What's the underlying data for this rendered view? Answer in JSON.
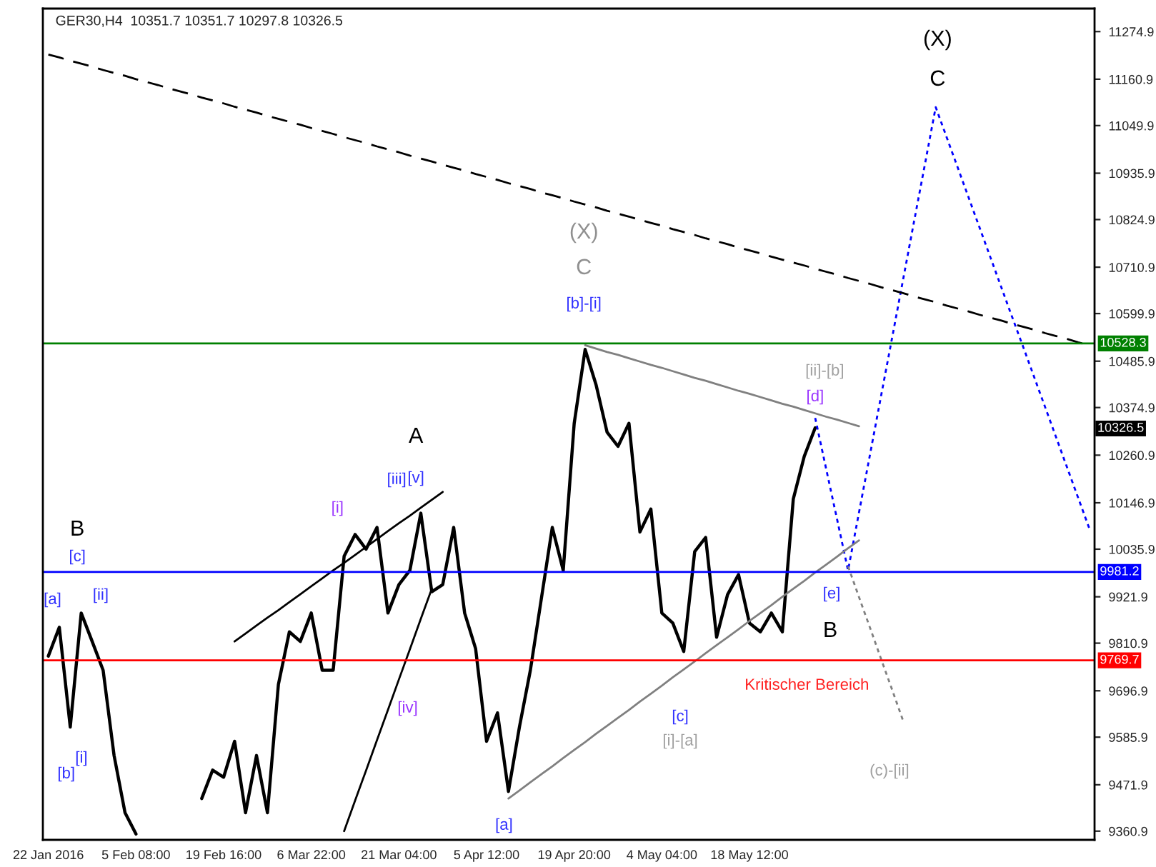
{
  "chart_data": {
    "type": "line",
    "title": "GER30,H4  10351.7 10351.7 10297.8 10326.5",
    "categories": [
      "22 Jan 2016",
      null,
      null,
      null,
      null,
      null,
      null,
      null,
      "5 Feb 08:00",
      null,
      null,
      null,
      null,
      null,
      null,
      null,
      "19 Feb 16:00",
      null,
      null,
      null,
      null,
      null,
      null,
      null,
      "6 Mar 22:00",
      null,
      null,
      null,
      null,
      null,
      null,
      null,
      "21 Mar 04:00",
      null,
      null,
      null,
      null,
      null,
      null,
      null,
      "5 Apr 12:00",
      null,
      null,
      null,
      null,
      null,
      null,
      null,
      "19 Apr 20:00",
      null,
      null,
      null,
      null,
      null,
      null,
      null,
      "4 May 04:00",
      null,
      null,
      null,
      null,
      null,
      null,
      null,
      "18 May 12:00",
      null,
      null,
      null,
      null,
      null,
      null,
      null,
      null,
      null,
      null,
      null,
      null,
      null,
      null,
      null,
      null,
      null,
      null,
      null,
      null,
      null,
      null,
      null,
      null,
      null,
      null,
      null,
      null,
      null,
      null,
      null
    ],
    "ylim": [
      9340,
      11330
    ],
    "yticks": [
      {
        "value": 9360.9,
        "label": "9360.9"
      },
      {
        "value": 9471.9,
        "label": "9471.9"
      },
      {
        "value": 9585.9,
        "label": "9585.9"
      },
      {
        "value": 9696.9,
        "label": "9696.9"
      },
      {
        "value": 9810.9,
        "label": "9810.9"
      },
      {
        "value": 9921.9,
        "label": "9921.9"
      },
      {
        "value": 10035.9,
        "label": "10035.9"
      },
      {
        "value": 10146.9,
        "label": "10146.9"
      },
      {
        "value": 10260.9,
        "label": "10260.9"
      },
      {
        "value": 10374.9,
        "label": "10374.9"
      },
      {
        "value": 10485.9,
        "label": "10485.9"
      },
      {
        "value": 10599.9,
        "label": "10599.9"
      },
      {
        "value": 10710.9,
        "label": "10710.9"
      },
      {
        "value": 10824.9,
        "label": "10824.9"
      },
      {
        "value": 10935.9,
        "label": "10935.9"
      },
      {
        "value": 11049.9,
        "label": "11049.9"
      },
      {
        "value": 11160.9,
        "label": "11160.9"
      },
      {
        "value": 11274.9,
        "label": "11274.9"
      }
    ],
    "grid": false,
    "series": [
      {
        "color": "#000000",
        "line_style": "solid",
        "values": [
          9780,
          9849,
          9610,
          9883,
          9815,
          9746,
          9542,
          9405,
          9354,
          null,
          null,
          null,
          null,
          null,
          null,
          null,
          null,
          null,
          null,
          null,
          null,
          null,
          null,
          null,
          null,
          null,
          null,
          null,
          null,
          null,
          null,
          null,
          null,
          null,
          null,
          null,
          null,
          null,
          null,
          null,
          null,
          null,
          null,
          null,
          null,
          null,
          null,
          null,
          null,
          null,
          null,
          null,
          null,
          null,
          null,
          null,
          null,
          null,
          null,
          null,
          null,
          null,
          null,
          null,
          null,
          null,
          null,
          null,
          null,
          null,
          null,
          null,
          null,
          null,
          null,
          null,
          null,
          null,
          null,
          null,
          null,
          null,
          null,
          null,
          null,
          null,
          null,
          null,
          null,
          null,
          null,
          null,
          null,
          null,
          null,
          null
        ]
      },
      {
        "color": "#000000",
        "line_style": "solid",
        "values": [
          null,
          null,
          null,
          null,
          null,
          null,
          null,
          null,
          null,
          null,
          null,
          null,
          null,
          null,
          9439,
          9507,
          9490,
          9576,
          9405,
          9542,
          9405,
          9712,
          9838,
          9815,
          9883,
          9746,
          9746,
          10019,
          10071,
          10036,
          10088,
          9883,
          9951,
          9985,
          10122,
          9934,
          9951,
          10088,
          9883,
          9798,
          9576,
          9644,
          9456,
          9610,
          9746,
          9917,
          10088,
          9985,
          10337,
          10514,
          10429,
          10316,
          10282,
          10337,
          10077,
          10132,
          9883,
          9859,
          9791,
          10030,
          10064,
          9825,
          9927,
          9975,
          9859,
          9838,
          9883,
          9838,
          10156,
          10258,
          10326.5,
          null,
          null,
          null,
          null,
          null,
          null,
          null,
          null,
          null,
          null,
          null,
          null,
          null,
          null,
          null,
          null,
          null,
          null,
          null,
          null,
          null,
          null,
          null,
          null,
          null
        ]
      },
      {
        "color": "#0000ff",
        "line_style": "dotted",
        "values": [
          null,
          null,
          null,
          null,
          null,
          null,
          null,
          null,
          null,
          null,
          null,
          null,
          null,
          null,
          null,
          null,
          null,
          null,
          null,
          null,
          null,
          null,
          null,
          null,
          null,
          null,
          null,
          null,
          null,
          null,
          null,
          null,
          null,
          null,
          null,
          null,
          null,
          null,
          null,
          null,
          null,
          null,
          null,
          null,
          null,
          null,
          null,
          null,
          null,
          null,
          null,
          null,
          null,
          null,
          null,
          null,
          null,
          null,
          null,
          null,
          null,
          null,
          null,
          null,
          null,
          null,
          null,
          null,
          null,
          null,
          10350,
          10228,
          10107,
          9985,
          10124,
          10262,
          10401,
          10539,
          10678,
          10817,
          10955,
          11094,
          11022,
          10950,
          10878,
          10806,
          10734,
          10662,
          10590,
          10519,
          10447,
          10375,
          10303,
          10231,
          10159,
          10087
        ]
      },
      {
        "color": "#808080",
        "line_style": "dotted",
        "values": [
          null,
          null,
          null,
          null,
          null,
          null,
          null,
          null,
          null,
          null,
          null,
          null,
          null,
          null,
          null,
          null,
          null,
          null,
          null,
          null,
          null,
          null,
          null,
          null,
          null,
          null,
          null,
          null,
          null,
          null,
          null,
          null,
          null,
          null,
          null,
          null,
          null,
          null,
          null,
          null,
          null,
          null,
          null,
          null,
          null,
          null,
          null,
          null,
          null,
          null,
          null,
          null,
          null,
          null,
          null,
          null,
          null,
          null,
          null,
          null,
          null,
          null,
          null,
          null,
          null,
          null,
          null,
          null,
          null,
          null,
          null,
          null,
          null,
          9995,
          9921,
          9848,
          9774,
          9701,
          9627,
          null,
          null,
          null,
          null,
          null,
          null,
          null,
          null,
          null,
          null,
          null,
          null,
          null,
          null,
          null,
          null,
          null
        ]
      },
      {
        "color": "#000000",
        "line_style": "dashed",
        "values": [
          11220,
          11213,
          11205,
          11198,
          11191,
          11183,
          11176,
          11169,
          11161,
          11154,
          11147,
          11139,
          11132,
          11125,
          11117,
          11110,
          11103,
          11095,
          11088,
          11081,
          11073,
          11066,
          11059,
          11052,
          11044,
          11037,
          11030,
          11022,
          11015,
          11008,
          11000,
          10993,
          10986,
          10978,
          10971,
          10964,
          10956,
          10949,
          10942,
          10934,
          10927,
          10920,
          10912,
          10905,
          10898,
          10890,
          10883,
          10876,
          10868,
          10861,
          10854,
          10846,
          10839,
          10832,
          10824,
          10817,
          10810,
          10802,
          10795,
          10788,
          10780,
          10773,
          10766,
          10758,
          10751,
          10744,
          10736,
          10729,
          10722,
          10715,
          10707,
          10700,
          10693,
          10685,
          10678,
          10671,
          10663,
          10656,
          10649,
          10641,
          10634,
          10627,
          10619,
          10612,
          10605,
          10597,
          10590,
          10583,
          10575,
          10568,
          10561,
          10553,
          10546,
          10539,
          10531,
          10524
        ]
      },
      {
        "color": "#000000",
        "line_style": "solid",
        "values": [
          null,
          null,
          null,
          null,
          null,
          null,
          null,
          null,
          null,
          null,
          null,
          null,
          null,
          null,
          null,
          null,
          null,
          9815,
          9834,
          9853,
          9872,
          9890,
          9909,
          9928,
          9947,
          9966,
          9985,
          10003,
          10022,
          10041,
          10060,
          10079,
          10098,
          10116,
          10135,
          10154,
          10173,
          null,
          null,
          null,
          null,
          null,
          null,
          null,
          null,
          null,
          null,
          null,
          null,
          null,
          null,
          null,
          null,
          null,
          null,
          null,
          null,
          null,
          null,
          null,
          null,
          null,
          null,
          null,
          null,
          null,
          null,
          null,
          null,
          null,
          null,
          null,
          null,
          null,
          null,
          null,
          null,
          null,
          null,
          null,
          null,
          null,
          null,
          null,
          null,
          null,
          null,
          null,
          null,
          null,
          null,
          null,
          null,
          null,
          null,
          null
        ]
      },
      {
        "color": "#000000",
        "line_style": "solid",
        "values": [
          null,
          null,
          null,
          null,
          null,
          null,
          null,
          null,
          null,
          null,
          null,
          null,
          null,
          null,
          null,
          null,
          null,
          null,
          null,
          null,
          null,
          null,
          null,
          null,
          null,
          null,
          null,
          9361,
          9434,
          9506,
          9579,
          9651,
          9724,
          9796,
          9869,
          9941,
          null,
          null,
          null,
          null,
          null,
          null,
          null,
          null,
          null,
          null,
          null,
          null,
          null,
          null,
          null,
          null,
          null,
          null,
          null,
          null,
          null,
          null,
          null,
          null,
          null,
          null,
          null,
          null,
          null,
          null,
          null,
          null,
          null,
          null,
          null,
          null,
          null,
          null,
          null,
          null,
          null,
          null,
          null,
          null,
          null,
          null,
          null,
          null,
          null,
          null,
          null,
          null,
          null,
          null,
          null,
          null,
          null,
          null,
          null,
          null
        ]
      },
      {
        "color": "#808080",
        "line_style": "solid",
        "values": [
          null,
          null,
          null,
          null,
          null,
          null,
          null,
          null,
          null,
          null,
          null,
          null,
          null,
          null,
          null,
          null,
          null,
          null,
          null,
          null,
          null,
          null,
          null,
          null,
          null,
          null,
          null,
          null,
          null,
          null,
          null,
          null,
          null,
          null,
          null,
          null,
          null,
          null,
          null,
          null,
          null,
          null,
          9439,
          9458,
          9478,
          9497,
          9516,
          9536,
          9555,
          9574,
          9594,
          9613,
          9632,
          9651,
          9671,
          9690,
          9709,
          9729,
          9748,
          9767,
          9787,
          9806,
          9825,
          9844,
          9864,
          9883,
          9902,
          9922,
          9941,
          9960,
          9980,
          9999,
          10018,
          10038,
          10057,
          null,
          null,
          null,
          null,
          null,
          null,
          null,
          null,
          null,
          null,
          null,
          null,
          null,
          null,
          null,
          null,
          null,
          null,
          null,
          null,
          null
        ]
      },
      {
        "color": "#808080",
        "line_style": "solid",
        "values": [
          null,
          null,
          null,
          null,
          null,
          null,
          null,
          null,
          null,
          null,
          null,
          null,
          null,
          null,
          null,
          null,
          null,
          null,
          null,
          null,
          null,
          null,
          null,
          null,
          null,
          null,
          null,
          null,
          null,
          null,
          null,
          null,
          null,
          null,
          null,
          null,
          null,
          null,
          null,
          null,
          null,
          null,
          null,
          null,
          null,
          null,
          null,
          null,
          null,
          10524,
          10516,
          10508,
          10501,
          10493,
          10485,
          10477,
          10470,
          10462,
          10454,
          10446,
          10439,
          10431,
          10423,
          10415,
          10408,
          10400,
          10392,
          10384,
          10377,
          10369,
          10361,
          10353,
          10346,
          10338,
          10330,
          null,
          null,
          null,
          null,
          null,
          null,
          null,
          null,
          null,
          null,
          null,
          null,
          null,
          null,
          null,
          null,
          null,
          null,
          null,
          null,
          null
        ]
      }
    ],
    "ref_lines": [
      {
        "axis": "y",
        "value": 10528.3,
        "label": "10528.3",
        "color": "#008000"
      },
      {
        "axis": "y",
        "value": 9981.2,
        "label": "9981.2",
        "color": "#0000ff"
      },
      {
        "axis": "y",
        "value": 9769.7,
        "label": "9769.7",
        "color": "#ff0000"
      }
    ],
    "annotations": [
      "10326.5",
      "(X)",
      "C",
      "(X)",
      "C",
      "[b]-[i]",
      "[ii]-[b]",
      "[d]",
      "A",
      "[iii]",
      "[v]",
      "[i]",
      "B",
      "[c]",
      "[a]",
      "[ii]",
      "[iv]",
      "[i]",
      "[b]",
      "[a]",
      "[c]",
      "[i]-[a]",
      "[e]",
      "B",
      "Kritischer Bereich",
      "(c)-[ii]"
    ]
  }
}
